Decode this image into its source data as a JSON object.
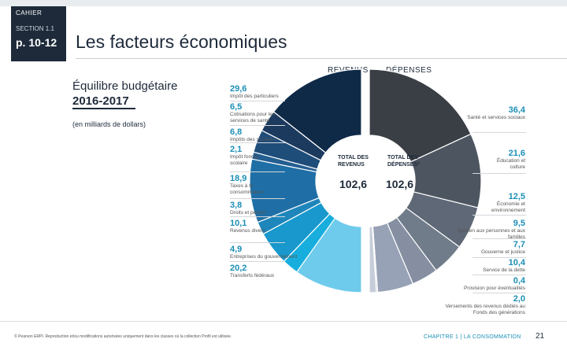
{
  "header": {
    "cahier": "CAHIER",
    "section": "SECTION 1.1",
    "pages": "p. 10-12",
    "title": "Les facteurs économiques"
  },
  "chart_data": {
    "type": "pie",
    "title": "Équilibre budgétaire",
    "title_years": "2016-2017",
    "units_note": "(en milliards de dollars)",
    "revenus": {
      "heading": "REVENUS",
      "total_label_1": "TOTAL DES",
      "total_label_2": "REVENUS",
      "total": "102,6",
      "slices": [
        {
          "label": "Impôt des particuliers",
          "value": 29.6,
          "display": "29,6",
          "color": "#0f2a47"
        },
        {
          "label": "Cotisations pour les services de santé",
          "value": 6.5,
          "display": "6,5",
          "color": "#1c3a5e"
        },
        {
          "label": "Impôts des sociétés",
          "value": 6.8,
          "display": "6,8",
          "color": "#1f4d7a"
        },
        {
          "label": "Impôt foncier scolaire",
          "value": 2.1,
          "display": "2,1",
          "color": "#235e91"
        },
        {
          "label": "Taxes à la consommation",
          "value": 18.9,
          "display": "18,9",
          "color": "#1f6fa6"
        },
        {
          "label": "Droits et permis",
          "value": 3.8,
          "display": "3,8",
          "color": "#1f86bb"
        },
        {
          "label": "Revenus divers",
          "value": 10.1,
          "display": "10,1",
          "color": "#1898cc"
        },
        {
          "label": "Entreprises du gouvernement",
          "value": 4.9,
          "display": "4,9",
          "color": "#17aede"
        },
        {
          "label": "Transferts fédéraux",
          "value": 20.2,
          "display": "20,2",
          "color": "#6fcbec"
        }
      ]
    },
    "depenses": {
      "heading": "DÉPENSES",
      "total_label_1": "TOTAL DES",
      "total_label_2": "DÉPENSES*",
      "total": "102,6",
      "slices": [
        {
          "label": "Santé et services sociaux",
          "value": 36.4,
          "display": "36,4",
          "color": "#3a3f45"
        },
        {
          "label": "Éducation et culture",
          "value": 21.6,
          "display": "21,6",
          "color": "#4d5560"
        },
        {
          "label": "Économie et environnement",
          "value": 12.5,
          "display": "12,5",
          "color": "#5e6876"
        },
        {
          "label": "Soutien aux personnes et aux familles",
          "value": 9.5,
          "display": "9,5",
          "color": "#717c8a"
        },
        {
          "label": "Gouverne et justice",
          "value": 7.7,
          "display": "7,7",
          "color": "#858fa1"
        },
        {
          "label": "Service de la dette",
          "value": 10.4,
          "display": "10,4",
          "color": "#98a2b6"
        },
        {
          "label": "Provision pour éventualités",
          "value": 0.4,
          "display": "0,4",
          "color": "#b3bccb"
        },
        {
          "label": "Versements des revenus dédiés au Fonds des générations",
          "value": 2.0,
          "display": "2,0",
          "color": "#c6cdd9"
        }
      ]
    }
  },
  "footer": {
    "copyright": "© Pearson ERPI. Reproduction et/ou modifications autorisées uniquement dans les classes où la collection Profil est utilisée.",
    "chapter": "CHAPITRE 1 | LA CONSOMMATION",
    "page_number": "21"
  }
}
